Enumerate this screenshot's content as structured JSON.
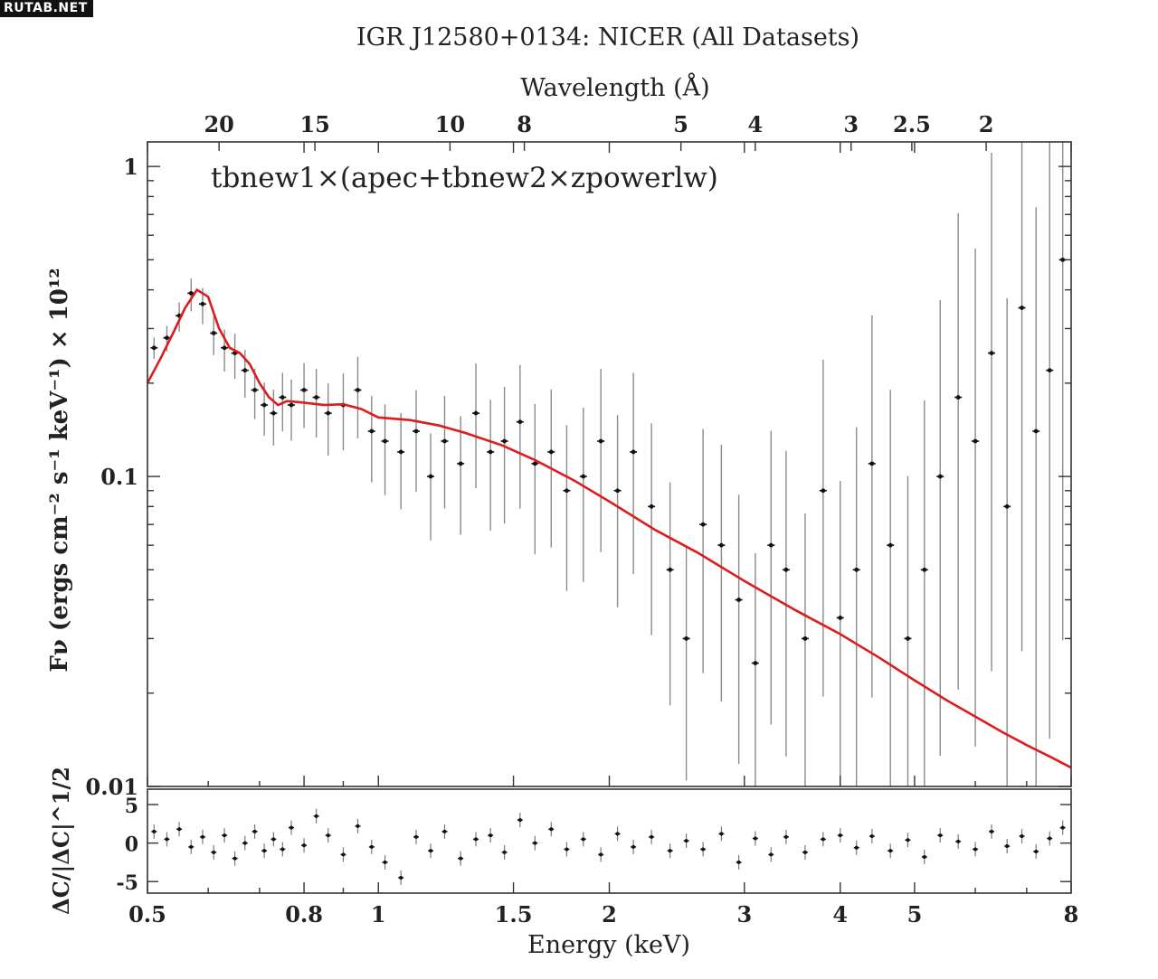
{
  "watermark": "RUTAB.NET",
  "chart_data": {
    "type": "scatter",
    "title": "IGR J12580+0134: NICER (All Datasets)",
    "model_label": "tbnew1×(apec+tbnew2×zpowerlw)",
    "top_axis": {
      "label": "Wavelength (Å)",
      "ticks": [
        "20",
        "15",
        "10",
        "8",
        "5",
        "4",
        "3",
        "2.5",
        "2"
      ]
    },
    "main_panel": {
      "ylabel": "Fν (ergs cm⁻² s⁻¹ keV⁻¹) × 10¹²",
      "yscale": "log",
      "ylim": [
        0.01,
        1.2
      ],
      "yticks": [
        "1",
        "0.1",
        "0.01"
      ],
      "series": [
        {
          "name": "data",
          "color": "#111111",
          "x": [
            0.51,
            0.53,
            0.55,
            0.57,
            0.59,
            0.61,
            0.63,
            0.65,
            0.67,
            0.69,
            0.71,
            0.73,
            0.75,
            0.77,
            0.8,
            0.83,
            0.86,
            0.9,
            0.94,
            0.98,
            1.02,
            1.07,
            1.12,
            1.17,
            1.22,
            1.28,
            1.34,
            1.4,
            1.46,
            1.53,
            1.6,
            1.68,
            1.76,
            1.85,
            1.95,
            2.05,
            2.15,
            2.27,
            2.4,
            2.52,
            2.65,
            2.8,
            2.95,
            3.1,
            3.25,
            3.4,
            3.6,
            3.8,
            4.0,
            4.2,
            4.4,
            4.65,
            4.9,
            5.15,
            5.4,
            5.7,
            6.0,
            6.3,
            6.6,
            6.9,
            7.2,
            7.5,
            7.8
          ],
          "y": [
            0.26,
            0.28,
            0.33,
            0.39,
            0.36,
            0.29,
            0.26,
            0.25,
            0.22,
            0.19,
            0.17,
            0.16,
            0.18,
            0.17,
            0.19,
            0.18,
            0.16,
            0.17,
            0.19,
            0.14,
            0.13,
            0.12,
            0.14,
            0.1,
            0.13,
            0.11,
            0.16,
            0.12,
            0.13,
            0.15,
            0.11,
            0.12,
            0.09,
            0.1,
            0.13,
            0.09,
            0.12,
            0.08,
            0.05,
            0.03,
            0.07,
            0.06,
            0.04,
            0.025,
            0.06,
            0.05,
            0.03,
            0.09,
            0.035,
            0.05,
            0.11,
            0.06,
            0.03,
            0.05,
            0.1,
            0.18,
            0.13,
            0.25,
            0.08,
            0.35,
            0.14,
            0.22,
            0.5
          ]
        },
        {
          "name": "model",
          "color": "#dd1c1c",
          "x": [
            0.5,
            0.52,
            0.54,
            0.56,
            0.58,
            0.6,
            0.62,
            0.64,
            0.66,
            0.68,
            0.7,
            0.72,
            0.74,
            0.76,
            0.8,
            0.85,
            0.9,
            0.95,
            1.0,
            1.1,
            1.2,
            1.3,
            1.45,
            1.6,
            1.8,
            2.0,
            2.3,
            2.6,
            3.0,
            3.5,
            4.0,
            4.5,
            5.0,
            5.5,
            6.0,
            6.5,
            7.0,
            7.5,
            8.0
          ],
          "y": [
            0.2,
            0.24,
            0.29,
            0.35,
            0.4,
            0.38,
            0.3,
            0.26,
            0.25,
            0.23,
            0.2,
            0.18,
            0.17,
            0.175,
            0.173,
            0.17,
            0.171,
            0.165,
            0.155,
            0.152,
            0.146,
            0.138,
            0.126,
            0.113,
            0.097,
            0.083,
            0.067,
            0.057,
            0.046,
            0.037,
            0.031,
            0.026,
            0.022,
            0.019,
            0.0168,
            0.015,
            0.0136,
            0.0125,
            0.0115
          ]
        }
      ]
    },
    "residual_panel": {
      "ylabel": "ΔC/|ΔC|^1/2",
      "ylim": [
        -6.5,
        7
      ],
      "yticks": [
        "5",
        "0",
        "-5"
      ],
      "x": [
        0.51,
        0.53,
        0.55,
        0.57,
        0.59,
        0.61,
        0.63,
        0.65,
        0.67,
        0.69,
        0.71,
        0.73,
        0.75,
        0.77,
        0.8,
        0.83,
        0.86,
        0.9,
        0.94,
        0.98,
        1.02,
        1.07,
        1.12,
        1.17,
        1.22,
        1.28,
        1.34,
        1.4,
        1.46,
        1.53,
        1.6,
        1.68,
        1.76,
        1.85,
        1.95,
        2.05,
        2.15,
        2.27,
        2.4,
        2.52,
        2.65,
        2.8,
        2.95,
        3.1,
        3.25,
        3.4,
        3.6,
        3.8,
        4.0,
        4.2,
        4.4,
        4.65,
        4.9,
        5.15,
        5.4,
        5.7,
        6.0,
        6.3,
        6.6,
        6.9,
        7.2,
        7.5,
        7.8
      ],
      "values": [
        1.5,
        0.5,
        1.8,
        -0.5,
        0.8,
        -1.2,
        1.0,
        -2.0,
        0.0,
        1.5,
        -1.0,
        0.5,
        -0.8,
        2.0,
        -0.3,
        3.5,
        1.0,
        -1.5,
        2.2,
        -0.5,
        -2.5,
        -4.5,
        0.8,
        -1.0,
        1.5,
        -2.0,
        0.5,
        1.0,
        -1.2,
        3.0,
        0.0,
        1.8,
        -0.8,
        0.5,
        -1.5,
        1.2,
        -0.5,
        0.8,
        -1.0,
        0.3,
        -0.8,
        1.2,
        -2.5,
        0.6,
        -1.5,
        0.8,
        -1.2,
        0.5,
        1.0,
        -0.6,
        0.9,
        -1.0,
        0.4,
        -1.8,
        1.0,
        0.2,
        -0.8,
        1.5,
        -0.4,
        0.9,
        -1.1,
        0.6,
        2.0
      ]
    },
    "xaxis": {
      "label": "Energy (keV)",
      "scale": "log",
      "xlim": [
        0.5,
        8
      ],
      "ticks": [
        "0.5",
        "0.8",
        "1",
        "1.5",
        "2",
        "3",
        "4",
        "5",
        "8"
      ]
    },
    "grid": false,
    "legend": "none"
  }
}
